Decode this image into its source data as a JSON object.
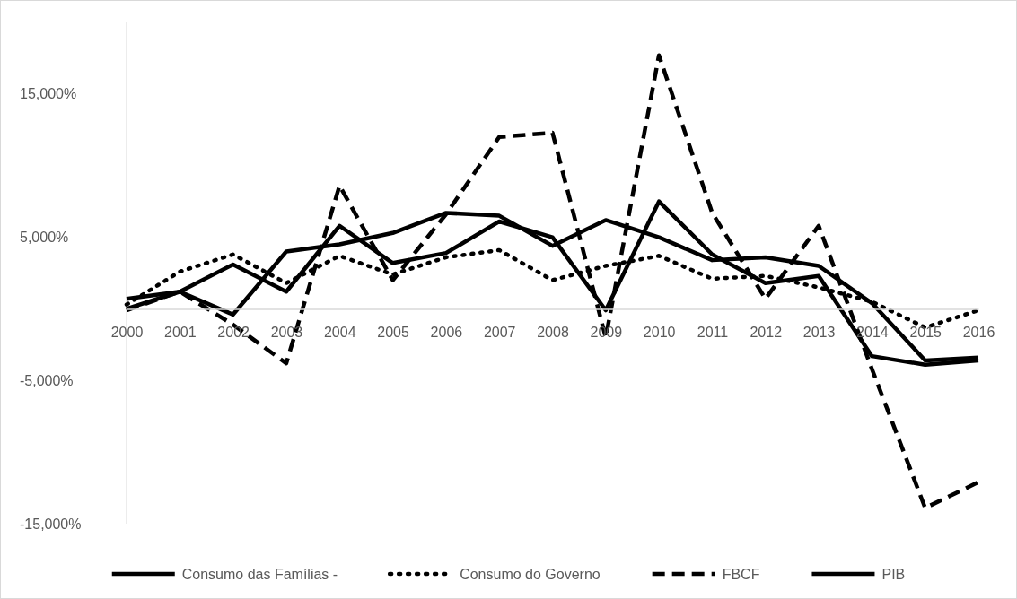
{
  "chart_data": {
    "type": "line",
    "categories": [
      "2000",
      "2001",
      "2002",
      "2003",
      "2004",
      "2005",
      "2006",
      "2007",
      "2008",
      "2009",
      "2010",
      "2011",
      "2012",
      "2013",
      "2014",
      "2015",
      "2016"
    ],
    "series": [
      {
        "name": "Consumo das Famílias -",
        "color": "#000000",
        "line_style": "solid",
        "values": [
          700,
          1200,
          -400,
          4000,
          4500,
          5300,
          6700,
          6500,
          4400,
          6200,
          5000,
          3400,
          3600,
          3000,
          400,
          -3600,
          -3400
        ]
      },
      {
        "name": "Consumo do Governo",
        "color": "#000000",
        "line_style": "dotted",
        "values": [
          300,
          2600,
          3800,
          1800,
          3700,
          2400,
          3600,
          4100,
          2000,
          3000,
          3700,
          2100,
          2300,
          1500,
          500,
          -1300,
          -100
        ]
      },
      {
        "name": "FBCF",
        "color": "#000000",
        "line_style": "dashed",
        "values": [
          -100,
          1200,
          -1100,
          -3800,
          8600,
          2000,
          6600,
          12000,
          12300,
          -2000,
          17700,
          6700,
          700,
          5800,
          -4200,
          -13900,
          -12100
        ]
      },
      {
        "name": "PIB",
        "color": "#000000",
        "line_style": "solid",
        "values": [
          0,
          1200,
          3100,
          1200,
          5800,
          3200,
          3900,
          6100,
          5000,
          -100,
          7500,
          3800,
          1800,
          2300,
          -3300,
          -3900,
          -3600
        ]
      }
    ],
    "ylim": [
      -15000,
      20000
    ],
    "yticks": [
      {
        "value": -15000,
        "label": "-15,000%"
      },
      {
        "value": -5000,
        "label": "-5,000%"
      },
      {
        "value": 5000,
        "label": "5,000%"
      },
      {
        "value": 15000,
        "label": "15,000%"
      }
    ],
    "grid": false,
    "legend": "bottom",
    "marker": "none"
  }
}
